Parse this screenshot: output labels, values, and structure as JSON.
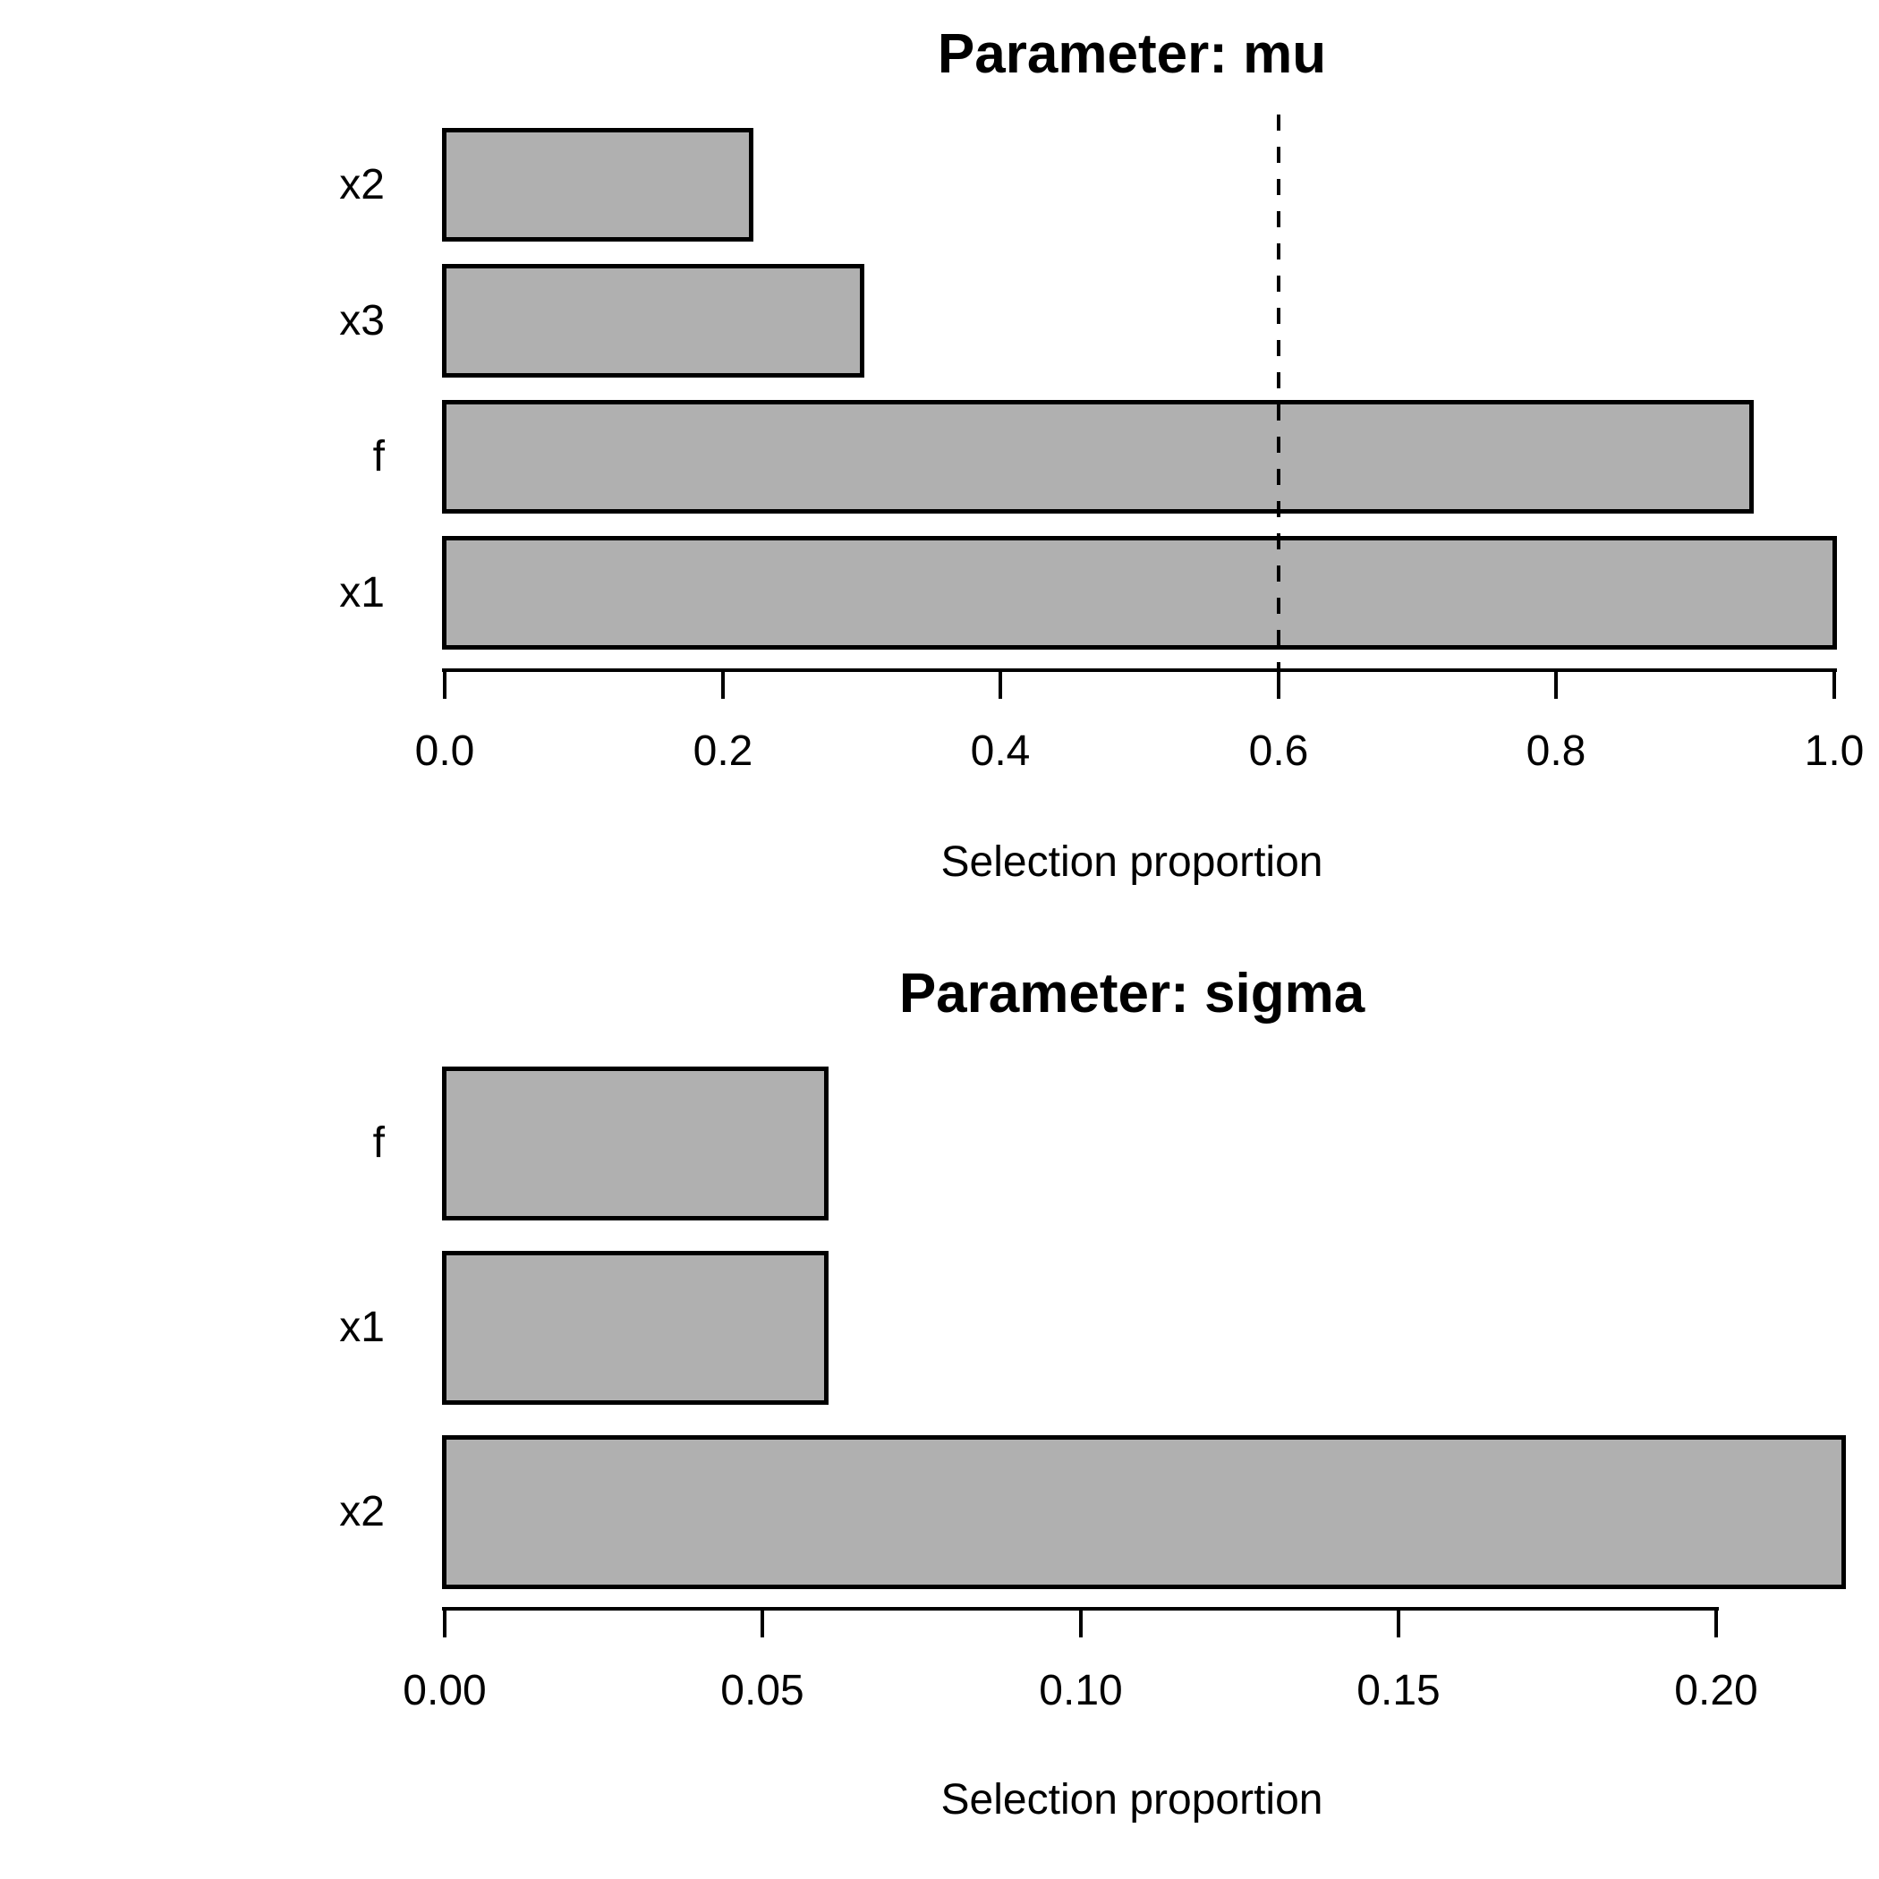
{
  "figure": {
    "background_color": "#ffffff",
    "text_color": "#000000"
  },
  "chart_data": [
    {
      "type": "bar",
      "orientation": "horizontal",
      "title": "Parameter: mu",
      "xlabel": "Selection proportion",
      "categories": [
        "x2",
        "x3",
        "f",
        "x1"
      ],
      "values": [
        0.22,
        0.3,
        0.94,
        1.0
      ],
      "xlim": [
        0.0,
        1.0
      ],
      "xtick_values": [
        0.0,
        0.2,
        0.4,
        0.6,
        0.8,
        1.0
      ],
      "xtick_labels": [
        "0.0",
        "0.2",
        "0.4",
        "0.6",
        "0.8",
        "1.0"
      ],
      "reference_vline": {
        "value": 0.6,
        "style": "dashed",
        "color": "#000000"
      },
      "bar_fill": "#b0b0b0",
      "bar_border": "#000000",
      "grid": false,
      "legend": null
    },
    {
      "type": "bar",
      "orientation": "horizontal",
      "title": "Parameter: sigma",
      "xlabel": "Selection proportion",
      "categories": [
        "f",
        "x1",
        "x2"
      ],
      "values": [
        0.06,
        0.06,
        0.22
      ],
      "xlim": [
        0.0,
        0.2
      ],
      "xtick_values": [
        0.0,
        0.05,
        0.1,
        0.15,
        0.2
      ],
      "xtick_labels": [
        "0.00",
        "0.05",
        "0.10",
        "0.15",
        "0.20"
      ],
      "reference_vline": null,
      "bar_fill": "#b0b0b0",
      "bar_border": "#000000",
      "grid": false,
      "legend": null
    }
  ]
}
